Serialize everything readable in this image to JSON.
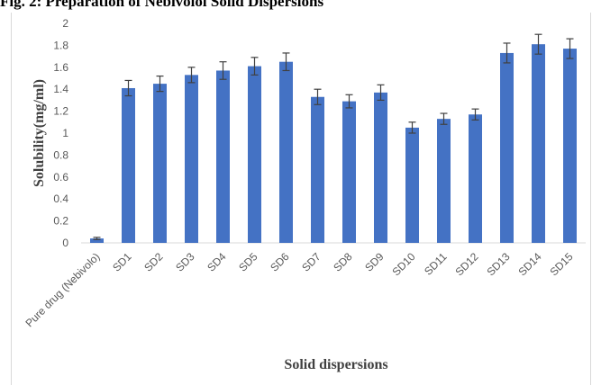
{
  "figure_caption": "Fig. 2: Preparation of Nebivolol Solid Dispersions",
  "chart_data": {
    "type": "bar",
    "title": "",
    "xlabel": "Solid dispersions",
    "ylabel": "Solubility(mg/ml)",
    "ylim": [
      0,
      2
    ],
    "yticks": [
      "0",
      "0.2",
      "0.4",
      "0.6",
      "0.8",
      "1",
      "1.2",
      "1.4",
      "1.6",
      "1.8",
      "2"
    ],
    "grid": false,
    "error_bars": true,
    "categories": [
      "Pure drug (Nebivolo)",
      "SD1",
      "SD2",
      "SD3",
      "SD4",
      "SD5",
      "SD6",
      "SD7",
      "SD8",
      "SD9",
      "SD10",
      "SD11",
      "SD12",
      "SD13",
      "SD14",
      "SD15"
    ],
    "values": [
      0.04,
      1.41,
      1.45,
      1.53,
      1.57,
      1.61,
      1.65,
      1.33,
      1.29,
      1.37,
      1.05,
      1.13,
      1.17,
      1.73,
      1.81,
      1.77
    ],
    "errors": [
      0.01,
      0.07,
      0.07,
      0.07,
      0.08,
      0.08,
      0.08,
      0.07,
      0.06,
      0.07,
      0.05,
      0.05,
      0.05,
      0.09,
      0.09,
      0.09
    ],
    "bar_color": "#4472c4"
  }
}
